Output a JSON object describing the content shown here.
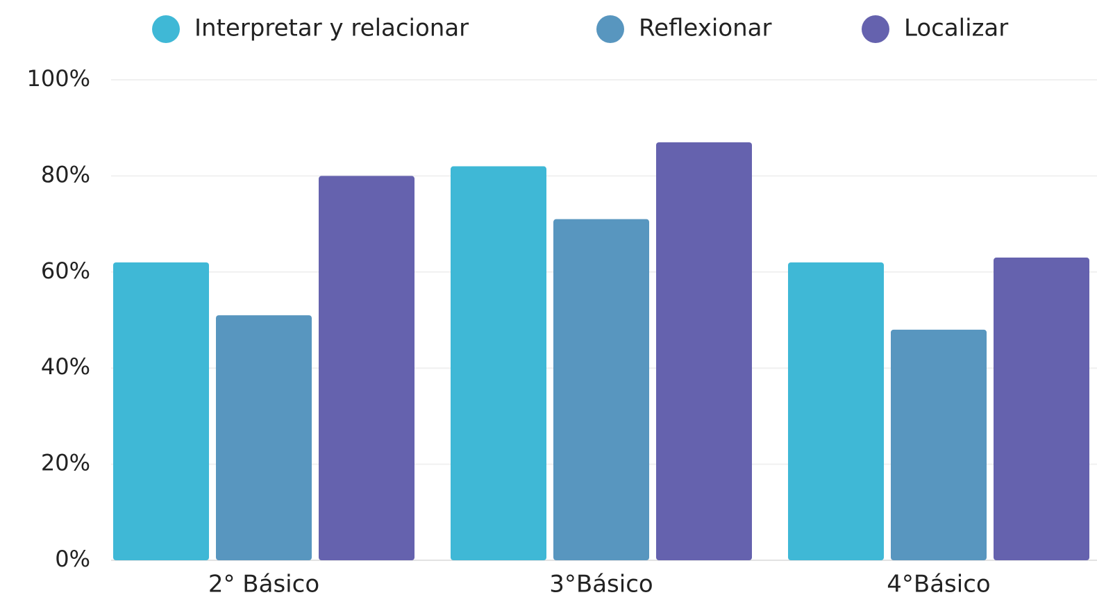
{
  "chart_data": {
    "type": "bar",
    "categories": [
      "2° Básico",
      "3°Básico",
      "4°Básico"
    ],
    "series": [
      {
        "name": "Interpretar y relacionar",
        "color": "#3fb8d6",
        "values": [
          62,
          82,
          62
        ]
      },
      {
        "name": "Reflexionar",
        "color": "#5896bf",
        "values": [
          51,
          71,
          48
        ]
      },
      {
        "name": "Localizar",
        "color": "#6562ae",
        "values": [
          80,
          87,
          63
        ]
      }
    ],
    "ylim": [
      0,
      100
    ],
    "yticks": [
      {
        "value": 0,
        "label": "0%"
      },
      {
        "value": 20,
        "label": "20%"
      },
      {
        "value": 40,
        "label": "40%"
      },
      {
        "value": 60,
        "label": "60%"
      },
      {
        "value": 80,
        "label": "80%"
      },
      {
        "value": 100,
        "label": "100%"
      }
    ],
    "grid": true,
    "legend": "top"
  }
}
